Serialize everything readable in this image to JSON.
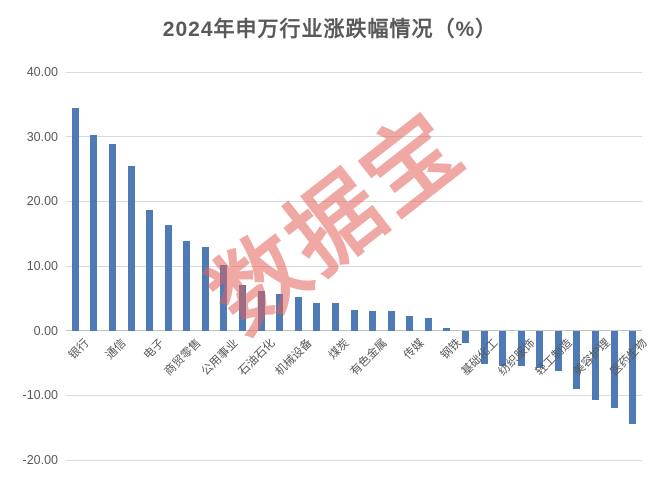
{
  "title": "2024年申万行业涨跌幅情况（%）",
  "watermark": "数据宝",
  "colors": {
    "bar": "#4e7bb6",
    "grid": "#d9d9d9",
    "zero_line": "#c3c3c3",
    "axis_text": "#595959",
    "title_text": "#595959",
    "watermark": "rgba(226,96,90,0.55)"
  },
  "chart_data": {
    "type": "bar",
    "title": "2024年申万行业涨跌幅情况（%）",
    "xlabel": "",
    "ylabel": "",
    "ylim": [
      -20,
      40
    ],
    "ytick_step": 10,
    "yticks": [
      "40.00",
      "30.00",
      "20.00",
      "10.00",
      "0.00",
      "-10.00",
      "-20.00"
    ],
    "grid": true,
    "legend": false,
    "note": "31 bars sorted descending; only every other bar carries a visible category label (empty string = unlabeled bar)",
    "categories": [
      "银行",
      "",
      "通信",
      "",
      "电子",
      "",
      "商贸零售",
      "",
      "公用事业",
      "",
      "石油石化",
      "",
      "机械设备",
      "",
      "煤炭",
      "",
      "有色金属",
      "",
      "传媒",
      "",
      "钢铁",
      "",
      "基础化工",
      "",
      "纺织服饰",
      "",
      "轻工制造",
      "",
      "美容护理",
      "",
      "医药生物"
    ],
    "values": [
      34.4,
      30.2,
      28.8,
      25.5,
      18.6,
      16.3,
      13.8,
      13.0,
      10.2,
      7.0,
      6.1,
      5.6,
      5.2,
      4.3,
      4.3,
      3.2,
      3.1,
      3.1,
      2.2,
      1.9,
      0.4,
      -1.9,
      -5.2,
      -5.5,
      -5.5,
      -5.7,
      -6.3,
      -9.0,
      -10.7,
      -11.9,
      -14.4
    ]
  }
}
